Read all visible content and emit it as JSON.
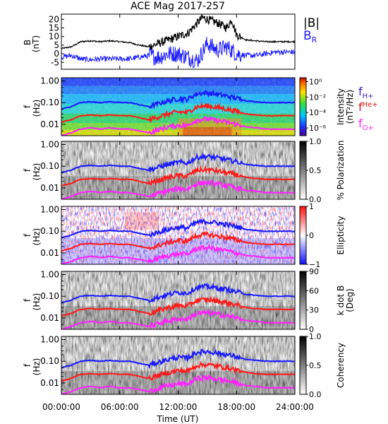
{
  "title": "ACE Mag 2017-257",
  "time_axis": {
    "label": "Time (UT)",
    "ticks": [
      "00:00:00",
      "06:00:00",
      "12:00:00",
      "18:00:00",
      "24:00:00"
    ],
    "range_hours": [
      0,
      24
    ]
  },
  "colors": {
    "B_total": "#000000",
    "B_R": "#1a1aff",
    "f_H": "#1a1aff",
    "f_He": "#ff1a1a",
    "f_O": "#ff22ff"
  },
  "legend": {
    "B_total": "|B|",
    "B_R": "B",
    "B_R_sub": "R",
    "f_H": "f",
    "f_H_sub": "H+",
    "f_He": "f",
    "f_He_sub": "He+",
    "f_O": "f",
    "f_O_sub": "O+"
  },
  "field_panel": {
    "ylabel_top": "B",
    "ylabel_bottom": "(nT)",
    "yticks": [
      "20",
      "15",
      "10",
      "5",
      "0",
      "-5"
    ],
    "ylim": [
      -9,
      23
    ]
  },
  "spectral_panels": [
    {
      "id": "intensity",
      "ylabel_top": "f",
      "ylabel_bottom": "(Hz)",
      "yticks": [
        "1.00",
        "0.10",
        "0.01"
      ],
      "cbar_label": "Intensity",
      "cbar_label_2": "(nT²/Hz)",
      "cbar_ticks": [
        "10⁰",
        "10⁻²",
        "10⁻⁴",
        "10⁻⁶"
      ],
      "cbar_range": [
        -7,
        0.5
      ]
    },
    {
      "id": "polarization",
      "ylabel_top": "f",
      "ylabel_bottom": "(Hz)",
      "yticks": [
        "1.00",
        "0.10",
        "0.01"
      ],
      "cbar_label": "% Polarization",
      "cbar_ticks": [
        "1.0",
        "0.5",
        "0.0"
      ],
      "cbar_range": [
        0,
        1
      ]
    },
    {
      "id": "ellipticity",
      "ylabel_top": "f",
      "ylabel_bottom": "(Hz)",
      "yticks": [
        "1.00",
        "0.10",
        "0.01"
      ],
      "cbar_label": "Ellipticity",
      "cbar_ticks": [
        "1",
        "0",
        "−1"
      ],
      "cbar_range": [
        -1,
        1
      ]
    },
    {
      "id": "kdotb",
      "ylabel_top": "f",
      "ylabel_bottom": "(Hz)",
      "yticks": [
        "1.00",
        "0.10",
        "0.01"
      ],
      "cbar_label": "k dot B",
      "cbar_label_2": "(Deg)",
      "cbar_ticks": [
        "90",
        "60",
        "30",
        "0"
      ],
      "cbar_range": [
        0,
        90
      ]
    },
    {
      "id": "coherency",
      "ylabel_top": "f",
      "ylabel_bottom": "(Hz)",
      "yticks": [
        "1.00",
        "0.10",
        "0.01"
      ],
      "cbar_label": "Coherency",
      "cbar_ticks": [
        "1.0",
        "0.5",
        "0.0"
      ],
      "cbar_range": [
        0,
        1
      ]
    }
  ],
  "chart_data": [
    {
      "type": "line",
      "panel": "field",
      "series": [
        {
          "name": "|B|",
          "x": [
            0,
            1,
            2,
            3,
            4,
            5,
            6,
            7,
            8,
            9,
            10,
            11,
            12,
            13,
            14,
            14.5,
            15,
            16,
            17,
            17.5,
            18,
            19,
            20,
            21,
            22,
            23,
            24
          ],
          "y": [
            3,
            4,
            7,
            7.5,
            7,
            7.5,
            7,
            6.5,
            5,
            4,
            6,
            8,
            10,
            12,
            18,
            21,
            20,
            18,
            15,
            20,
            11,
            8,
            7.5,
            7,
            7,
            7,
            7
          ]
        },
        {
          "name": "B_R",
          "x": [
            0,
            1,
            2,
            3,
            4,
            5,
            6,
            7,
            8,
            9,
            10,
            11,
            12,
            13,
            14,
            15,
            16,
            17,
            18,
            19,
            20,
            21,
            22,
            23,
            24
          ],
          "y": [
            -2,
            -1,
            -3,
            -3.5,
            -3,
            -3,
            -3,
            -3,
            -2,
            -1,
            -2,
            0,
            0,
            -2,
            -4,
            6,
            2,
            4,
            0,
            -1,
            -1,
            0,
            1,
            1,
            1
          ]
        }
      ],
      "ylabel": "B (nT)",
      "ylim": [
        -9,
        23
      ]
    },
    {
      "type": "line",
      "panel": "gyrofrequency_overlays",
      "series": [
        {
          "name": "f_H+",
          "x": [
            0,
            1,
            2,
            3,
            4,
            5,
            6,
            7,
            8,
            9,
            10,
            11,
            12,
            13,
            14,
            15,
            16,
            17,
            18,
            19,
            20,
            21,
            22,
            23,
            24
          ],
          "y": [
            0.05,
            0.065,
            0.1,
            0.11,
            0.1,
            0.11,
            0.1,
            0.1,
            0.08,
            0.065,
            0.09,
            0.12,
            0.15,
            0.14,
            0.26,
            0.28,
            0.24,
            0.2,
            0.16,
            0.12,
            0.11,
            0.1,
            0.1,
            0.1,
            0.1
          ]
        },
        {
          "name": "f_He+",
          "x": [
            0,
            1,
            2,
            3,
            4,
            5,
            6,
            7,
            8,
            9,
            10,
            11,
            12,
            13,
            14,
            15,
            16,
            17,
            18,
            19,
            20,
            21,
            22,
            23,
            24
          ],
          "y": [
            0.0125,
            0.016,
            0.025,
            0.027,
            0.025,
            0.027,
            0.025,
            0.025,
            0.02,
            0.016,
            0.022,
            0.03,
            0.037,
            0.035,
            0.065,
            0.07,
            0.06,
            0.05,
            0.04,
            0.03,
            0.027,
            0.025,
            0.025,
            0.025,
            0.025
          ]
        },
        {
          "name": "f_O+",
          "x": [
            0,
            1,
            2,
            3,
            4,
            5,
            6,
            7,
            8,
            9,
            10,
            11,
            12,
            13,
            14,
            15,
            16,
            17,
            18,
            19,
            20,
            21,
            22,
            23,
            24
          ],
          "y": [
            0.003,
            0.004,
            0.006,
            0.007,
            0.006,
            0.007,
            0.006,
            0.006,
            0.005,
            0.004,
            0.0056,
            0.0075,
            0.009,
            0.0088,
            0.016,
            0.0175,
            0.015,
            0.0125,
            0.01,
            0.0075,
            0.007,
            0.006,
            0.006,
            0.006,
            0.006
          ]
        }
      ],
      "xlabel": "Time (UT)",
      "ylabel": "f (Hz)",
      "ylim": [
        0.003,
        1.4
      ],
      "yscale": "log"
    }
  ]
}
